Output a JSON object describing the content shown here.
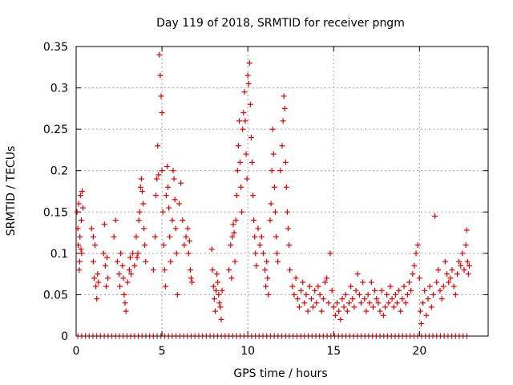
{
  "chart_data": {
    "type": "scatter",
    "title": "Day 119 of 2018, SRMTID for receiver pngm",
    "xlabel": "GPS time / hours",
    "ylabel": "SRMTID / TECUs",
    "xlim": [
      0,
      24
    ],
    "ylim": [
      0,
      0.35
    ],
    "xticks": [
      0,
      5,
      10,
      15,
      20
    ],
    "yticks": [
      0,
      0.05,
      0.1,
      0.15,
      0.2,
      0.25,
      0.3,
      0.35
    ],
    "xtick_labels": [
      "0",
      "5",
      "10",
      "15",
      "20"
    ],
    "ytick_labels": [
      "0",
      "0.05",
      "0.1",
      "0.15",
      "0.2",
      "0.25",
      "0.3",
      "0.35"
    ],
    "grid": true,
    "marker": "+",
    "color": "#e00000",
    "series": [
      {
        "name": "SRMTID",
        "points": [
          [
            0.05,
            0.15
          ],
          [
            0.1,
            0.13
          ],
          [
            0.12,
            0.11
          ],
          [
            0.15,
            0.16
          ],
          [
            0.2,
            0.09
          ],
          [
            0.22,
            0.12
          ],
          [
            0.25,
            0.17
          ],
          [
            0.3,
            0.14
          ],
          [
            0.32,
            0.1
          ],
          [
            0.35,
            0.175
          ],
          [
            0.4,
            0.155
          ],
          [
            0.18,
            0.08
          ],
          [
            0.28,
            0.105
          ],
          [
            0.9,
            0.13
          ],
          [
            1.0,
            0.09
          ],
          [
            1.05,
            0.07
          ],
          [
            1.1,
            0.11
          ],
          [
            1.15,
            0.06
          ],
          [
            1.2,
            0.045
          ],
          [
            1.25,
            0.075
          ],
          [
            1.3,
            0.065
          ],
          [
            1.0,
            0.12
          ],
          [
            1.6,
            0.1
          ],
          [
            1.65,
            0.135
          ],
          [
            1.7,
            0.085
          ],
          [
            1.75,
            0.06
          ],
          [
            1.8,
            0.095
          ],
          [
            1.85,
            0.07
          ],
          [
            2.2,
            0.12
          ],
          [
            2.3,
            0.14
          ],
          [
            2.4,
            0.09
          ],
          [
            2.5,
            0.075
          ],
          [
            2.55,
            0.06
          ],
          [
            2.6,
            0.1
          ],
          [
            2.7,
            0.085
          ],
          [
            2.75,
            0.07
          ],
          [
            2.8,
            0.05
          ],
          [
            2.85,
            0.04
          ],
          [
            2.9,
            0.03
          ],
          [
            3.0,
            0.065
          ],
          [
            3.1,
            0.08
          ],
          [
            3.15,
            0.095
          ],
          [
            3.2,
            0.075
          ],
          [
            3.3,
            0.1
          ],
          [
            3.4,
            0.085
          ],
          [
            3.5,
            0.12
          ],
          [
            3.6,
            0.1
          ],
          [
            3.65,
            0.14
          ],
          [
            3.7,
            0.15
          ],
          [
            3.75,
            0.18
          ],
          [
            3.8,
            0.19
          ],
          [
            3.85,
            0.175
          ],
          [
            3.9,
            0.16
          ],
          [
            3.95,
            0.13
          ],
          [
            4.0,
            0.11
          ],
          [
            4.05,
            0.09
          ],
          [
            3.55,
            0.095
          ],
          [
            4.5,
            0.08
          ],
          [
            4.6,
            0.12
          ],
          [
            4.65,
            0.17
          ],
          [
            4.7,
            0.19
          ],
          [
            4.75,
            0.23
          ],
          [
            4.8,
            0.195
          ],
          [
            4.85,
            0.34
          ],
          [
            4.9,
            0.315
          ],
          [
            4.95,
            0.29
          ],
          [
            5.0,
            0.27
          ],
          [
            5.0,
            0.2
          ],
          [
            5.05,
            0.15
          ],
          [
            5.1,
            0.11
          ],
          [
            5.15,
            0.08
          ],
          [
            5.2,
            0.06
          ],
          [
            5.25,
            0.17
          ],
          [
            5.3,
            0.205
          ],
          [
            5.35,
            0.18
          ],
          [
            5.4,
            0.155
          ],
          [
            5.45,
            0.12
          ],
          [
            5.5,
            0.09
          ],
          [
            5.6,
            0.14
          ],
          [
            5.65,
            0.2
          ],
          [
            5.7,
            0.19
          ],
          [
            5.75,
            0.165
          ],
          [
            5.8,
            0.13
          ],
          [
            5.85,
            0.1
          ],
          [
            5.9,
            0.05
          ],
          [
            6.0,
            0.16
          ],
          [
            6.1,
            0.185
          ],
          [
            6.2,
            0.14
          ],
          [
            6.3,
            0.11
          ],
          [
            6.4,
            0.12
          ],
          [
            6.5,
            0.13
          ],
          [
            6.55,
            0.1
          ],
          [
            6.6,
            0.115
          ],
          [
            6.65,
            0.08
          ],
          [
            6.7,
            0.07
          ],
          [
            6.75,
            0.065
          ],
          [
            7.9,
            0.105
          ],
          [
            7.95,
            0.08
          ],
          [
            8.0,
            0.06
          ],
          [
            8.05,
            0.045
          ],
          [
            8.1,
            0.03
          ],
          [
            8.15,
            0.055
          ],
          [
            8.2,
            0.075
          ],
          [
            8.25,
            0.065
          ],
          [
            8.3,
            0.05
          ],
          [
            8.35,
            0.04
          ],
          [
            8.4,
            0.035
          ],
          [
            8.45,
            0.02
          ],
          [
            8.5,
            0.055
          ],
          [
            8.9,
            0.08
          ],
          [
            9.0,
            0.11
          ],
          [
            9.05,
            0.07
          ],
          [
            9.1,
            0.12
          ],
          [
            9.15,
            0.135
          ],
          [
            9.2,
            0.125
          ],
          [
            9.25,
            0.09
          ],
          [
            9.3,
            0.14
          ],
          [
            9.35,
            0.17
          ],
          [
            9.4,
            0.2
          ],
          [
            9.45,
            0.23
          ],
          [
            9.5,
            0.26
          ],
          [
            9.55,
            0.21
          ],
          [
            9.6,
            0.18
          ],
          [
            9.65,
            0.15
          ],
          [
            9.7,
            0.25
          ],
          [
            9.75,
            0.27
          ],
          [
            9.8,
            0.295
          ],
          [
            9.85,
            0.26
          ],
          [
            9.9,
            0.22
          ],
          [
            9.95,
            0.19
          ],
          [
            10.0,
            0.315
          ],
          [
            10.05,
            0.305
          ],
          [
            10.1,
            0.33
          ],
          [
            10.15,
            0.28
          ],
          [
            10.2,
            0.24
          ],
          [
            10.25,
            0.21
          ],
          [
            10.3,
            0.17
          ],
          [
            10.35,
            0.14
          ],
          [
            10.4,
            0.12
          ],
          [
            10.45,
            0.1
          ],
          [
            10.5,
            0.085
          ],
          [
            10.6,
            0.13
          ],
          [
            10.7,
            0.11
          ],
          [
            10.8,
            0.12
          ],
          [
            10.9,
            0.1
          ],
          [
            11.0,
            0.08
          ],
          [
            11.05,
            0.06
          ],
          [
            11.1,
            0.09
          ],
          [
            11.15,
            0.07
          ],
          [
            11.2,
            0.05
          ],
          [
            11.3,
            0.14
          ],
          [
            11.35,
            0.16
          ],
          [
            11.4,
            0.2
          ],
          [
            11.45,
            0.25
          ],
          [
            11.5,
            0.22
          ],
          [
            11.55,
            0.18
          ],
          [
            11.6,
            0.15
          ],
          [
            11.65,
            0.12
          ],
          [
            11.7,
            0.1
          ],
          [
            11.75,
            0.09
          ],
          [
            11.9,
            0.2
          ],
          [
            12.0,
            0.23
          ],
          [
            12.05,
            0.26
          ],
          [
            12.1,
            0.29
          ],
          [
            12.15,
            0.275
          ],
          [
            12.2,
            0.21
          ],
          [
            12.25,
            0.18
          ],
          [
            12.3,
            0.15
          ],
          [
            12.35,
            0.13
          ],
          [
            12.4,
            0.11
          ],
          [
            12.45,
            0.08
          ],
          [
            12.6,
            0.06
          ],
          [
            12.7,
            0.05
          ],
          [
            12.8,
            0.07
          ],
          [
            12.9,
            0.045
          ],
          [
            13.0,
            0.035
          ],
          [
            13.1,
            0.055
          ],
          [
            13.2,
            0.065
          ],
          [
            13.3,
            0.04
          ],
          [
            13.4,
            0.05
          ],
          [
            13.5,
            0.03
          ],
          [
            13.6,
            0.06
          ],
          [
            13.7,
            0.045
          ],
          [
            13.8,
            0.035
          ],
          [
            13.9,
            0.055
          ],
          [
            14.0,
            0.04
          ],
          [
            14.1,
            0.06
          ],
          [
            14.2,
            0.05
          ],
          [
            14.3,
            0.03
          ],
          [
            14.4,
            0.045
          ],
          [
            14.5,
            0.065
          ],
          [
            14.6,
            0.07
          ],
          [
            14.7,
            0.04
          ],
          [
            14.8,
            0.1
          ],
          [
            14.9,
            0.055
          ],
          [
            15.0,
            0.035
          ],
          [
            15.1,
            0.025
          ],
          [
            15.2,
            0.04
          ],
          [
            15.3,
            0.03
          ],
          [
            15.4,
            0.02
          ],
          [
            15.5,
            0.045
          ],
          [
            15.6,
            0.035
          ],
          [
            15.7,
            0.05
          ],
          [
            15.8,
            0.03
          ],
          [
            15.9,
            0.04
          ],
          [
            16.0,
            0.06
          ],
          [
            16.1,
            0.045
          ],
          [
            16.2,
            0.035
          ],
          [
            16.3,
            0.055
          ],
          [
            16.4,
            0.075
          ],
          [
            16.5,
            0.05
          ],
          [
            16.6,
            0.04
          ],
          [
            16.7,
            0.065
          ],
          [
            16.8,
            0.045
          ],
          [
            16.9,
            0.03
          ],
          [
            17.0,
            0.05
          ],
          [
            17.1,
            0.04
          ],
          [
            17.2,
            0.065
          ],
          [
            17.3,
            0.035
          ],
          [
            17.4,
            0.055
          ],
          [
            17.5,
            0.045
          ],
          [
            17.6,
            0.04
          ],
          [
            17.7,
            0.03
          ],
          [
            17.8,
            0.055
          ],
          [
            17.9,
            0.025
          ],
          [
            18.0,
            0.035
          ],
          [
            18.1,
            0.05
          ],
          [
            18.2,
            0.04
          ],
          [
            18.3,
            0.06
          ],
          [
            18.4,
            0.045
          ],
          [
            18.5,
            0.035
          ],
          [
            18.6,
            0.05
          ],
          [
            18.7,
            0.04
          ],
          [
            18.8,
            0.055
          ],
          [
            18.9,
            0.03
          ],
          [
            19.0,
            0.045
          ],
          [
            19.1,
            0.06
          ],
          [
            19.2,
            0.04
          ],
          [
            19.3,
            0.05
          ],
          [
            19.4,
            0.065
          ],
          [
            19.5,
            0.055
          ],
          [
            19.6,
            0.075
          ],
          [
            19.7,
            0.085
          ],
          [
            19.8,
            0.1
          ],
          [
            19.9,
            0.11
          ],
          [
            20.0,
            0.07
          ],
          [
            20.05,
            0.03
          ],
          [
            20.1,
            0.015
          ],
          [
            20.2,
            0.04
          ],
          [
            20.3,
            0.055
          ],
          [
            20.4,
            0.025
          ],
          [
            20.5,
            0.045
          ],
          [
            20.6,
            0.06
          ],
          [
            20.7,
            0.035
          ],
          [
            20.8,
            0.05
          ],
          [
            20.9,
            0.145
          ],
          [
            21.0,
            0.065
          ],
          [
            21.1,
            0.08
          ],
          [
            21.2,
            0.055
          ],
          [
            21.3,
            0.045
          ],
          [
            21.4,
            0.06
          ],
          [
            21.5,
            0.09
          ],
          [
            21.6,
            0.075
          ],
          [
            21.7,
            0.065
          ],
          [
            21.8,
            0.07
          ],
          [
            21.9,
            0.08
          ],
          [
            22.0,
            0.06
          ],
          [
            22.1,
            0.05
          ],
          [
            22.2,
            0.075
          ],
          [
            22.3,
            0.09
          ],
          [
            22.4,
            0.085
          ],
          [
            22.5,
            0.1
          ],
          [
            22.6,
            0.08
          ],
          [
            22.7,
            0.11
          ],
          [
            22.75,
            0.128
          ],
          [
            22.8,
            0.09
          ],
          [
            22.85,
            0.075
          ],
          [
            22.9,
            0.085
          ]
        ]
      }
    ]
  }
}
